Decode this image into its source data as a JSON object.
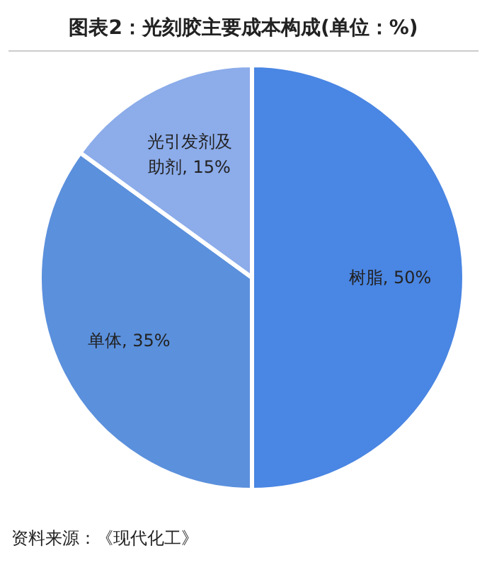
{
  "chart_data": {
    "type": "pie",
    "title": "图表2：光刻胶主要成本构成(单位：%)",
    "categories": [
      "树脂",
      "单体",
      "光引发剂及助剂"
    ],
    "values": [
      50,
      35,
      15
    ],
    "colors": [
      "#4a86e3",
      "#5b90dc",
      "#8cacea"
    ],
    "value_labels": [
      "50%",
      "35%",
      "15%"
    ],
    "annotations": [
      "资料来源：《现代化工》"
    ]
  }
}
